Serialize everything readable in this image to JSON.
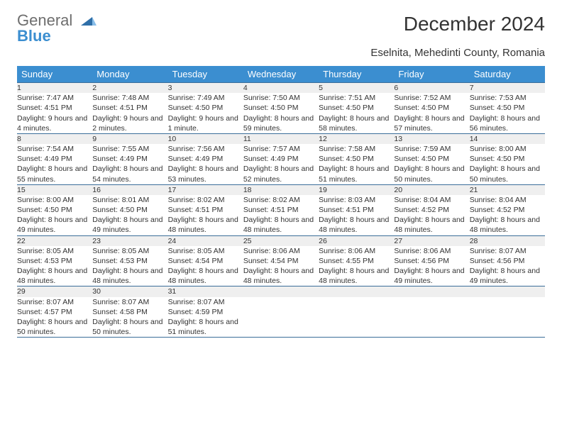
{
  "brand": {
    "line1": "General",
    "line2": "Blue"
  },
  "title": "December 2024",
  "subtitle": "Eselnita, Mehedinti County, Romania",
  "colors": {
    "header_bg": "#3b8ed0",
    "header_fg": "#ffffff",
    "daynum_bg": "#efefef",
    "rule": "#3b6e9a",
    "logo_gray": "#6e6e6e",
    "logo_blue": "#3b8ed0",
    "text": "#333333",
    "page_bg": "#ffffff"
  },
  "typography": {
    "title_fontsize": 28,
    "subtitle_fontsize": 15,
    "weekday_fontsize": 13,
    "daynum_fontsize": 12,
    "cell_fontsize": 10.5
  },
  "weekdays": [
    "Sunday",
    "Monday",
    "Tuesday",
    "Wednesday",
    "Thursday",
    "Friday",
    "Saturday"
  ],
  "weeks": [
    [
      {
        "n": "1",
        "sr": "7:47 AM",
        "ss": "4:51 PM",
        "dl": "9 hours and 4 minutes."
      },
      {
        "n": "2",
        "sr": "7:48 AM",
        "ss": "4:51 PM",
        "dl": "9 hours and 2 minutes."
      },
      {
        "n": "3",
        "sr": "7:49 AM",
        "ss": "4:50 PM",
        "dl": "9 hours and 1 minute."
      },
      {
        "n": "4",
        "sr": "7:50 AM",
        "ss": "4:50 PM",
        "dl": "8 hours and 59 minutes."
      },
      {
        "n": "5",
        "sr": "7:51 AM",
        "ss": "4:50 PM",
        "dl": "8 hours and 58 minutes."
      },
      {
        "n": "6",
        "sr": "7:52 AM",
        "ss": "4:50 PM",
        "dl": "8 hours and 57 minutes."
      },
      {
        "n": "7",
        "sr": "7:53 AM",
        "ss": "4:50 PM",
        "dl": "8 hours and 56 minutes."
      }
    ],
    [
      {
        "n": "8",
        "sr": "7:54 AM",
        "ss": "4:49 PM",
        "dl": "8 hours and 55 minutes."
      },
      {
        "n": "9",
        "sr": "7:55 AM",
        "ss": "4:49 PM",
        "dl": "8 hours and 54 minutes."
      },
      {
        "n": "10",
        "sr": "7:56 AM",
        "ss": "4:49 PM",
        "dl": "8 hours and 53 minutes."
      },
      {
        "n": "11",
        "sr": "7:57 AM",
        "ss": "4:49 PM",
        "dl": "8 hours and 52 minutes."
      },
      {
        "n": "12",
        "sr": "7:58 AM",
        "ss": "4:50 PM",
        "dl": "8 hours and 51 minutes."
      },
      {
        "n": "13",
        "sr": "7:59 AM",
        "ss": "4:50 PM",
        "dl": "8 hours and 50 minutes."
      },
      {
        "n": "14",
        "sr": "8:00 AM",
        "ss": "4:50 PM",
        "dl": "8 hours and 50 minutes."
      }
    ],
    [
      {
        "n": "15",
        "sr": "8:00 AM",
        "ss": "4:50 PM",
        "dl": "8 hours and 49 minutes."
      },
      {
        "n": "16",
        "sr": "8:01 AM",
        "ss": "4:50 PM",
        "dl": "8 hours and 49 minutes."
      },
      {
        "n": "17",
        "sr": "8:02 AM",
        "ss": "4:51 PM",
        "dl": "8 hours and 48 minutes."
      },
      {
        "n": "18",
        "sr": "8:02 AM",
        "ss": "4:51 PM",
        "dl": "8 hours and 48 minutes."
      },
      {
        "n": "19",
        "sr": "8:03 AM",
        "ss": "4:51 PM",
        "dl": "8 hours and 48 minutes."
      },
      {
        "n": "20",
        "sr": "8:04 AM",
        "ss": "4:52 PM",
        "dl": "8 hours and 48 minutes."
      },
      {
        "n": "21",
        "sr": "8:04 AM",
        "ss": "4:52 PM",
        "dl": "8 hours and 48 minutes."
      }
    ],
    [
      {
        "n": "22",
        "sr": "8:05 AM",
        "ss": "4:53 PM",
        "dl": "8 hours and 48 minutes."
      },
      {
        "n": "23",
        "sr": "8:05 AM",
        "ss": "4:53 PM",
        "dl": "8 hours and 48 minutes."
      },
      {
        "n": "24",
        "sr": "8:05 AM",
        "ss": "4:54 PM",
        "dl": "8 hours and 48 minutes."
      },
      {
        "n": "25",
        "sr": "8:06 AM",
        "ss": "4:54 PM",
        "dl": "8 hours and 48 minutes."
      },
      {
        "n": "26",
        "sr": "8:06 AM",
        "ss": "4:55 PM",
        "dl": "8 hours and 48 minutes."
      },
      {
        "n": "27",
        "sr": "8:06 AM",
        "ss": "4:56 PM",
        "dl": "8 hours and 49 minutes."
      },
      {
        "n": "28",
        "sr": "8:07 AM",
        "ss": "4:56 PM",
        "dl": "8 hours and 49 minutes."
      }
    ],
    [
      {
        "n": "29",
        "sr": "8:07 AM",
        "ss": "4:57 PM",
        "dl": "8 hours and 50 minutes."
      },
      {
        "n": "30",
        "sr": "8:07 AM",
        "ss": "4:58 PM",
        "dl": "8 hours and 50 minutes."
      },
      {
        "n": "31",
        "sr": "8:07 AM",
        "ss": "4:59 PM",
        "dl": "8 hours and 51 minutes."
      },
      null,
      null,
      null,
      null
    ]
  ],
  "labels": {
    "sunrise": "Sunrise:",
    "sunset": "Sunset:",
    "daylight": "Daylight:"
  }
}
